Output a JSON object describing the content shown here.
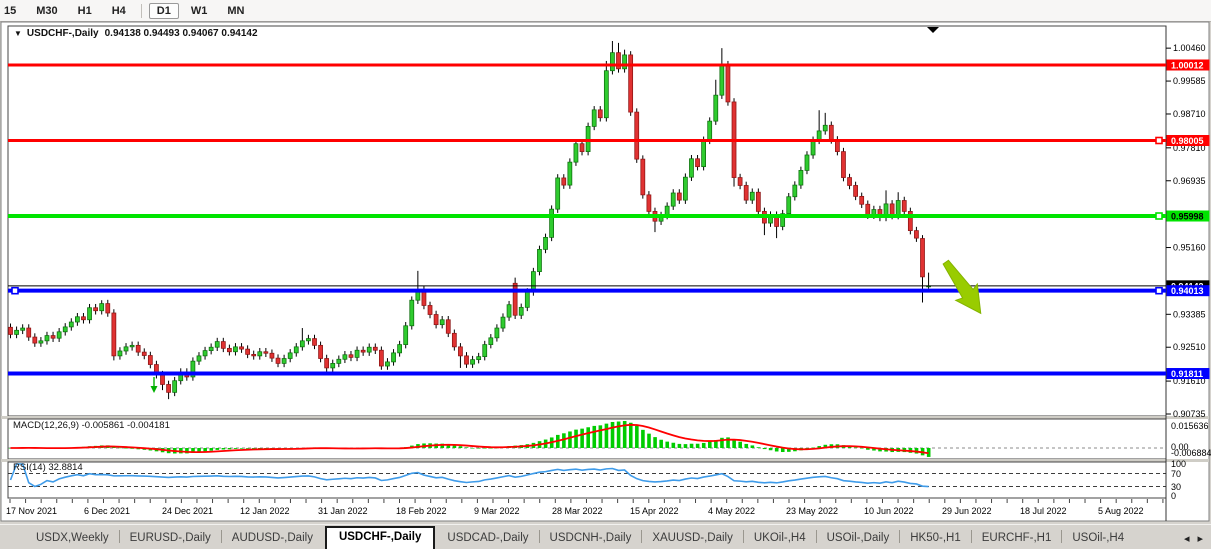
{
  "toolbar": {
    "timeframes": [
      {
        "label": "15",
        "active": false
      },
      {
        "label": "M30",
        "active": false
      },
      {
        "label": "H1",
        "active": false
      },
      {
        "label": "H4",
        "active": false
      },
      {
        "label": "D1",
        "active": true
      },
      {
        "label": "W1",
        "active": false
      },
      {
        "label": "MN",
        "active": false
      }
    ]
  },
  "icons": {
    "dropdown": "▼",
    "tab_scroll_left": "◂",
    "tab_scroll_right": "▸"
  },
  "chart": {
    "title_symbol": "USDCHF-,Daily",
    "title_ohlc": "0.94138 0.94493 0.94067 0.94142"
  },
  "chart_data": {
    "type": "candlestick",
    "symbol": "USDCHF-",
    "timeframe": "Daily",
    "current_bar": {
      "open": 0.94138,
      "high": 0.94493,
      "low": 0.94067,
      "close": 0.94142
    },
    "y_range": [
      0.9071,
      1.0105
    ],
    "closes": [
      0.9285,
      0.9296,
      0.9302,
      0.9278,
      0.9262,
      0.9268,
      0.9282,
      0.9275,
      0.9292,
      0.9305,
      0.9318,
      0.9332,
      0.9324,
      0.9356,
      0.9348,
      0.9367,
      0.9342,
      0.9228,
      0.9241,
      0.9252,
      0.9256,
      0.9238,
      0.9229,
      0.9205,
      0.9178,
      0.9152,
      0.9131,
      0.9162,
      0.9185,
      0.9172,
      0.9214,
      0.9228,
      0.9242,
      0.9251,
      0.9266,
      0.9248,
      0.9239,
      0.9252,
      0.9246,
      0.9232,
      0.9228,
      0.9239,
      0.9235,
      0.9222,
      0.9208,
      0.9221,
      0.9236,
      0.9252,
      0.9268,
      0.9274,
      0.9256,
      0.9221,
      0.9196,
      0.9208,
      0.9219,
      0.9231,
      0.9224,
      0.9243,
      0.9238,
      0.9251,
      0.9243,
      0.9201,
      0.9212,
      0.9236,
      0.9258,
      0.9308,
      0.9376,
      0.9404,
      0.9362,
      0.9338,
      0.9311,
      0.9324,
      0.9288,
      0.9252,
      0.9228,
      0.9206,
      0.9218,
      0.9226,
      0.9258,
      0.9276,
      0.9302,
      0.9331,
      0.9364,
      0.9336,
      0.9357,
      0.9398,
      0.9452,
      0.9511,
      0.9543,
      0.9618,
      0.9701,
      0.9682,
      0.9743,
      0.9792,
      0.9771,
      0.9838,
      0.9882,
      0.9861,
      0.9986,
      1.0034,
      0.9991,
      1.0028,
      0.9876,
      0.9751,
      0.9656,
      0.9612,
      0.9586,
      0.9601,
      0.9626,
      0.9661,
      0.9642,
      0.9703,
      0.9752,
      0.9731,
      0.9801,
      0.9852,
      0.9921,
      1.0002,
      0.9903,
      0.9702,
      0.9681,
      0.9642,
      0.9663,
      0.9612,
      0.9581,
      0.9602,
      0.9572,
      0.9606,
      0.9651,
      0.9682,
      0.9721,
      0.9762,
      0.9801,
      0.9826,
      0.9841,
      0.9802,
      0.9771,
      0.9702,
      0.9681,
      0.9652,
      0.9631,
      0.9602,
      0.9617,
      0.9596,
      0.9632,
      0.9601,
      0.9641,
      0.9612,
      0.9561,
      0.9541,
      0.9438,
      0.94142
    ],
    "overrides": {
      "0": {
        "o": 0.9304
      },
      "15": {
        "h": 0.9376
      },
      "17": {
        "l": 0.9216
      },
      "25": {
        "l": 0.9137
      },
      "26": {
        "l": 0.9113
      },
      "48": {
        "h": 0.9302
      },
      "67": {
        "h": 0.9454
      },
      "74": {
        "l": 0.9196
      },
      "83": {
        "o": 0.9421,
        "h": 0.9436
      },
      "98": {
        "h": 1.0012
      },
      "99": {
        "h": 1.0065
      },
      "100": {
        "h": 1.006
      },
      "101": {
        "h": 1.0042
      },
      "106": {
        "l": 0.9557
      },
      "116": {
        "h": 0.9962
      },
      "117": {
        "h": 1.0046
      },
      "119": {
        "l": 0.9678
      },
      "124": {
        "l": 0.9549
      },
      "126": {
        "l": 0.9541
      },
      "133": {
        "h": 0.9881
      },
      "134": {
        "h": 0.9874
      },
      "144": {
        "h": 0.9668
      },
      "146": {
        "h": 0.9663
      },
      "150": {
        "o": 0.954,
        "h": 0.9549,
        "l": 0.937
      },
      "151": {
        "o": 0.94138,
        "h": 0.94493,
        "l": 0.94067
      }
    },
    "levels": [
      {
        "price": 1.00012,
        "label": "1.00012",
        "color": "#ff0000",
        "kind": "resistance",
        "width": 3,
        "handle_left": false,
        "handle_right": false
      },
      {
        "price": 0.98005,
        "label": "0.98005",
        "color": "#ff0000",
        "kind": "resistance",
        "width": 3,
        "handle_left": false,
        "handle_right": true
      },
      {
        "price": 0.95998,
        "label": "0.95998",
        "color": "#00e400",
        "kind": "support",
        "width": 4,
        "handle_left": false,
        "handle_right": true
      },
      {
        "price": 0.94013,
        "label": "0.94013",
        "color": "#0000ff",
        "kind": "support",
        "width": 4,
        "handle_left": true,
        "handle_right": true
      },
      {
        "price": 0.91811,
        "label": "0.91811",
        "color": "#0000ff",
        "kind": "support",
        "width": 4,
        "handle_left": false,
        "handle_right": false
      }
    ],
    "current_price": {
      "price": 0.94142,
      "label": "0.94142",
      "color": "#000000"
    },
    "y_axis_ticks": [
      {
        "label": "1.00460",
        "value": 1.0046
      },
      {
        "label": "0.99585",
        "value": 0.99585
      },
      {
        "label": "0.98710",
        "value": 0.9871
      },
      {
        "label": "0.97810",
        "value": 0.9781
      },
      {
        "label": "0.96935",
        "value": 0.96935
      },
      {
        "label": "0.95160",
        "value": 0.9516
      },
      {
        "label": "0.93385",
        "value": 0.93385
      },
      {
        "label": "0.92510",
        "value": 0.9251
      },
      {
        "label": "0.91610",
        "value": 0.9161
      },
      {
        "label": "0.90735",
        "value": 0.90735
      }
    ],
    "time_axis_labels": [
      "17 Nov 2021",
      "6 Dec 2021",
      "24 Dec 2021",
      "12 Jan 2022",
      "31 Jan 2022",
      "18 Feb 2022",
      "9 Mar 2022",
      "28 Mar 2022",
      "15 Apr 2022",
      "4 May 2022",
      "23 May 2022",
      "10 Jun 2022",
      "29 Jun 2022",
      "18 Jul 2022",
      "5 Aug 2022"
    ],
    "annotations": {
      "big_down_arrow": {
        "x": 946,
        "y": 262,
        "angle": 55,
        "color": "#99cc00"
      },
      "small_sell_arrow": {
        "x": 154,
        "y": 377,
        "color": "#00b000"
      },
      "scroll_to_end_marker": {
        "x": 933,
        "y": 27
      }
    }
  },
  "indicators": {
    "macd": {
      "label_text": "MACD(12,26,9) -0.005861 -0.004181",
      "name": "MACD",
      "params": "12,26,9",
      "main_value": -0.005861,
      "signal_value": -0.004181,
      "axis_labels": [
        "0.015636",
        "0.00",
        "-0.006884"
      ]
    },
    "rsi": {
      "label_text": "RSI(14) 32.8814",
      "name": "RSI",
      "period": 14,
      "value": 32.8814,
      "axis_labels": [
        "100",
        "70",
        "30",
        "0"
      ],
      "level_lines": [
        70,
        30
      ]
    }
  },
  "colors": {
    "candle_up": "#2fcb2f",
    "candle_up_stroke": "#0c6e0c",
    "candle_down": "#e03232",
    "candle_down_stroke": "#8d1414",
    "wick": "#000000",
    "macd_hist": "#00cc00",
    "macd_signal": "#ff0000",
    "rsi_line": "#3e9be9",
    "arrow_fill": "#99cc00",
    "arrow_stroke": "#84b300"
  },
  "tabs": {
    "items": [
      {
        "label": "USDX,Weekly"
      },
      {
        "label": "EURUSD-,Daily"
      },
      {
        "label": "AUDUSD-,Daily"
      },
      {
        "label": "USDCHF-,Daily"
      },
      {
        "label": "USDCAD-,Daily"
      },
      {
        "label": "USDCNH-,Daily"
      },
      {
        "label": "XAUUSD-,Daily"
      },
      {
        "label": "UKOil-,H4"
      },
      {
        "label": "USOil-,Daily"
      },
      {
        "label": "HK50-,H1"
      },
      {
        "label": "EURCHF-,H1"
      },
      {
        "label": "USOil-,H4"
      }
    ],
    "active_index": 3
  }
}
